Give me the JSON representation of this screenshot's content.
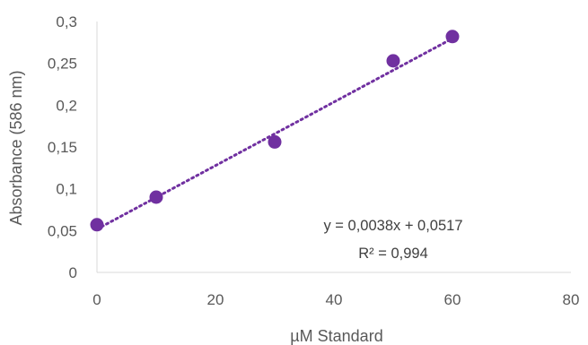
{
  "chart_data": {
    "type": "scatter",
    "title": "",
    "xlabel": "µM Standard",
    "ylabel": "Absorbance (586 nm)",
    "xlim": [
      0,
      80
    ],
    "ylim": [
      0,
      0.3
    ],
    "x_ticks": [
      "0",
      "20",
      "40",
      "60",
      "80"
    ],
    "y_ticks": [
      "0",
      "0,05",
      "0,1",
      "0,15",
      "0,2",
      "0,25",
      "0,3"
    ],
    "grid": false,
    "legend": "none",
    "series": [
      {
        "x": [
          0,
          10,
          30,
          50,
          60
        ],
        "y": [
          0.057,
          0.09,
          0.156,
          0.253,
          0.282
        ],
        "color": "#7030A0"
      }
    ],
    "trendline": {
      "type": "linear",
      "slope": 0.0038,
      "intercept": 0.0517,
      "x_range": [
        0,
        60
      ],
      "style": "dotted",
      "color": "#7030A0",
      "equation": "y = 0,0038x + 0,0517",
      "r_squared": "R² = 0,994"
    },
    "colors": {
      "axis": "#D9D9D9",
      "text": "#595959"
    }
  }
}
